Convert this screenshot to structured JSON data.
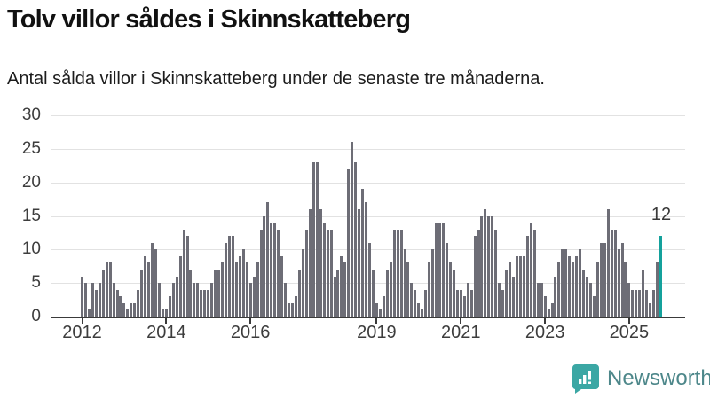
{
  "header": {
    "title": "Tolv villor såldes i Skinnskatteberg",
    "subtitle": "Antal sålda villor i Skinnskatteberg under de senaste tre månaderna."
  },
  "chart_data": {
    "type": "bar",
    "title": "Tolv villor såldes i Skinnskatteberg",
    "subtitle": "Antal sålda villor i Skinnskatteberg under de senaste tre månaderna.",
    "x_start": "2012-01",
    "x_end": "2025-10",
    "x_frequency": "monthly",
    "values": [
      6,
      5,
      1,
      5,
      4,
      5,
      7,
      8,
      8,
      5,
      4,
      3,
      2,
      1,
      2,
      2,
      4,
      7,
      9,
      8,
      11,
      10,
      5,
      1,
      1,
      3,
      5,
      6,
      9,
      13,
      12,
      7,
      5,
      5,
      4,
      4,
      4,
      5,
      7,
      7,
      8,
      11,
      12,
      12,
      8,
      9,
      10,
      8,
      5,
      6,
      8,
      13,
      15,
      17,
      14,
      14,
      13,
      9,
      5,
      2,
      2,
      3,
      7,
      10,
      13,
      16,
      23,
      23,
      16,
      14,
      13,
      13,
      6,
      7,
      9,
      8,
      22,
      26,
      23,
      16,
      19,
      17,
      11,
      7,
      2,
      1,
      3,
      7,
      8,
      13,
      13,
      13,
      10,
      8,
      5,
      4,
      2,
      1,
      4,
      8,
      10,
      14,
      14,
      14,
      11,
      8,
      7,
      4,
      4,
      3,
      5,
      4,
      12,
      13,
      15,
      16,
      15,
      15,
      13,
      5,
      4,
      7,
      8,
      6,
      9,
      9,
      9,
      12,
      14,
      13,
      5,
      5,
      3,
      1,
      2,
      6,
      8,
      10,
      10,
      9,
      8,
      9,
      10,
      7,
      6,
      5,
      3,
      8,
      11,
      11,
      16,
      13,
      13,
      10,
      11,
      8,
      5,
      4,
      4,
      4,
      7,
      4,
      2,
      4,
      8,
      12
    ],
    "highlight_last_bar": true,
    "last_value_label": "12",
    "bar_color": "#6d6d76",
    "highlight_color": "#14a19c",
    "grid": true,
    "gridline_color": "#e2e2e2",
    "ylim": [
      0,
      30
    ],
    "y_ticks": [
      0,
      5,
      10,
      15,
      20,
      25,
      30
    ],
    "x_tick_years": [
      2012,
      2014,
      2016,
      2019,
      2021,
      2023,
      2025
    ],
    "x_tick_labels": [
      "2012",
      "2014",
      "2016",
      "2019",
      "2021",
      "2023",
      "2025"
    ],
    "xlabel": "",
    "ylabel": ""
  },
  "footer": {
    "brand": "Newsworthy",
    "brand_color": "#4d878a",
    "icon_color": "#3BA7A4"
  }
}
